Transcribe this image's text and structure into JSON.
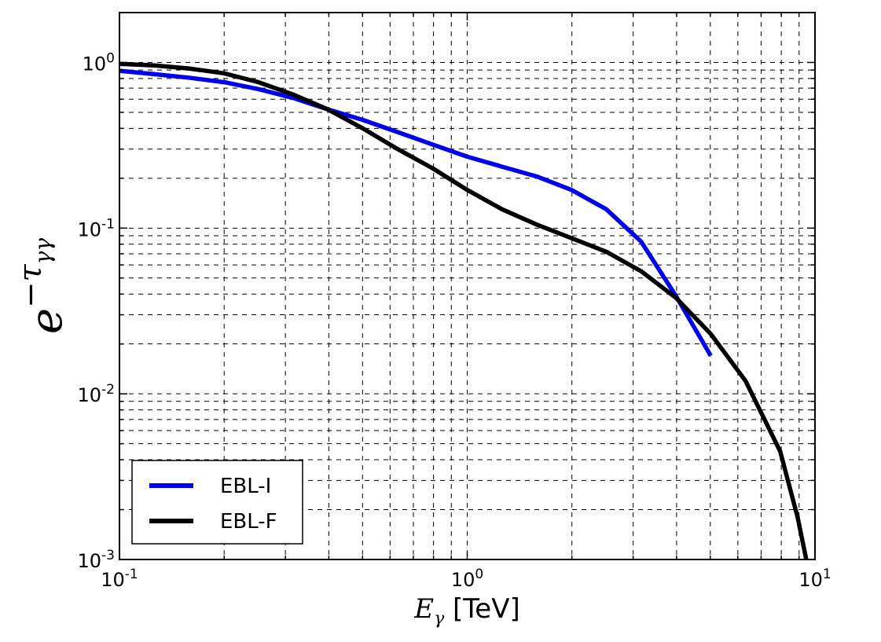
{
  "chart_data": {
    "type": "line",
    "title": "",
    "xlabel": {
      "base": "E",
      "sub": "γ",
      "unit": " [TeV]"
    },
    "ylabel": {
      "base": "e",
      "sup": "−τ",
      "supsub": "γγ"
    },
    "x_scale": "log",
    "y_scale": "log",
    "xlim": [
      0.1,
      10
    ],
    "ylim": [
      0.001,
      2
    ],
    "grid": true,
    "grid_style": "dashed",
    "legend_position": "lower-left",
    "x_ticks": [
      {
        "value": 0.1,
        "base": "10",
        "exp": "-1"
      },
      {
        "value": 1,
        "base": "10",
        "exp": "0"
      },
      {
        "value": 10,
        "base": "10",
        "exp": "1"
      }
    ],
    "y_ticks": [
      {
        "value": 0.001,
        "base": "10",
        "exp": "-3"
      },
      {
        "value": 0.01,
        "base": "10",
        "exp": "-2"
      },
      {
        "value": 0.1,
        "base": "10",
        "exp": "-1"
      },
      {
        "value": 1,
        "base": "10",
        "exp": "0"
      }
    ],
    "series": [
      {
        "name": "EBL-I",
        "color": "#0000ee",
        "x": [
          0.1,
          0.126,
          0.158,
          0.2,
          0.251,
          0.316,
          0.398,
          0.501,
          0.631,
          0.794,
          1.0,
          1.259,
          1.585,
          1.995,
          2.512,
          3.162,
          3.981,
          5.012
        ],
        "y": [
          0.89,
          0.85,
          0.81,
          0.76,
          0.69,
          0.61,
          0.52,
          0.45,
          0.38,
          0.32,
          0.27,
          0.235,
          0.205,
          0.17,
          0.13,
          0.083,
          0.039,
          0.017
        ]
      },
      {
        "name": "EBL-F",
        "color": "#000000",
        "x": [
          0.1,
          0.126,
          0.158,
          0.2,
          0.251,
          0.316,
          0.398,
          0.501,
          0.631,
          0.794,
          1.0,
          1.259,
          1.585,
          1.995,
          2.512,
          3.162,
          3.981,
          5.012,
          6.31,
          7.943,
          8.913,
          9.44
        ],
        "y": [
          0.98,
          0.96,
          0.92,
          0.86,
          0.76,
          0.64,
          0.52,
          0.4,
          0.3,
          0.23,
          0.17,
          0.13,
          0.105,
          0.087,
          0.072,
          0.055,
          0.038,
          0.023,
          0.012,
          0.0045,
          0.0018,
          0.001
        ]
      }
    ]
  }
}
